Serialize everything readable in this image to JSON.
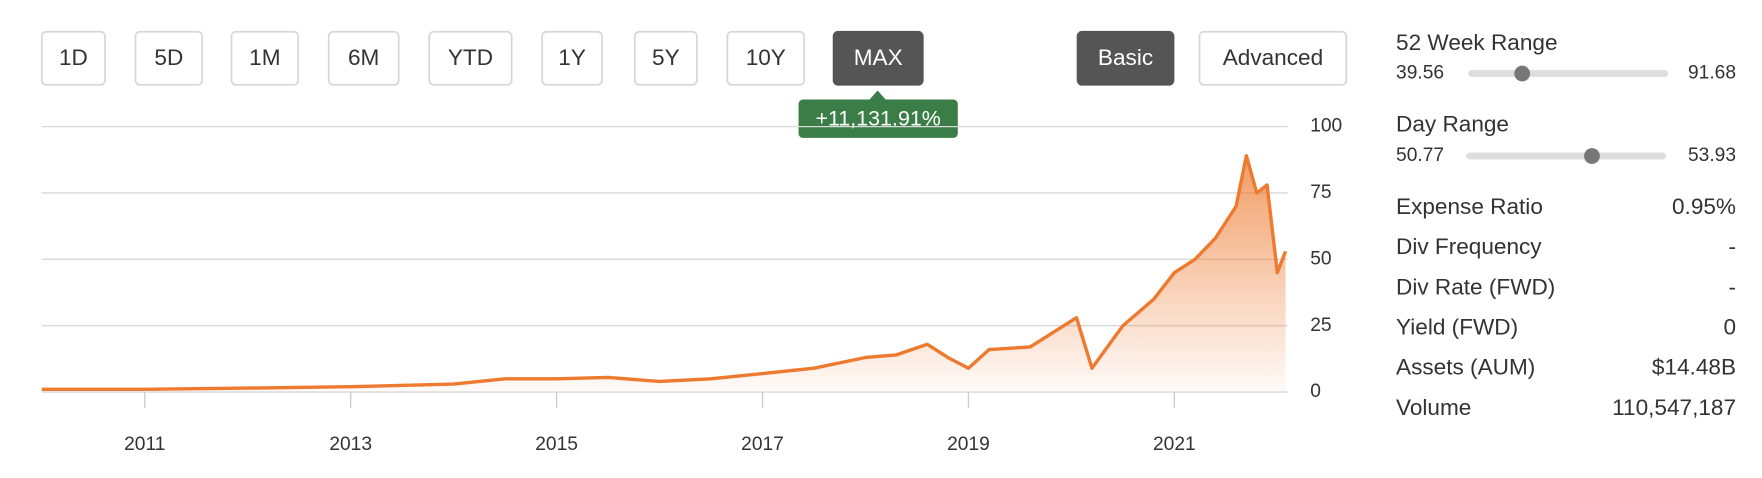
{
  "buttons": {
    "range": [
      "1D",
      "5D",
      "1M",
      "6M",
      "YTD",
      "1Y",
      "5Y",
      "10Y",
      "MAX"
    ],
    "active_range": 8,
    "view": [
      "Basic",
      "Advanced"
    ],
    "active_view": 0
  },
  "badge": "+11,131.91%",
  "chart_data": {
    "type": "line",
    "color": "#ee7a30",
    "x": [
      2010,
      2011,
      2012,
      2013,
      2014,
      2014.5,
      2015,
      2015.5,
      2016,
      2016.5,
      2017,
      2017.5,
      2018,
      2018.3,
      2018.6,
      2018.8,
      2019,
      2019.2,
      2019.6,
      2020.05,
      2020.2,
      2020.5,
      2020.8,
      2021,
      2021.2,
      2021.4,
      2021.6,
      2021.7,
      2021.8,
      2021.9,
      2022,
      2022.08
    ],
    "values": [
      1,
      1,
      1.5,
      2,
      3,
      5,
      5,
      5.5,
      4,
      5,
      7,
      9,
      13,
      14,
      18,
      13,
      9,
      16,
      17,
      28,
      9,
      25,
      35,
      45,
      50,
      58,
      70,
      89,
      75,
      78,
      45,
      53
    ],
    "xlim": [
      2010,
      2022.1
    ],
    "xticks": [
      2011,
      2013,
      2015,
      2017,
      2019,
      2021
    ],
    "ylim": [
      0,
      100
    ],
    "yticks": [
      0,
      25,
      50,
      75,
      100
    ],
    "grid": true
  },
  "ranges": [
    {
      "label": "52 Week Range",
      "low": 39.56,
      "high": 91.68,
      "marker": 53.6
    },
    {
      "label": "Day Range",
      "low": 50.77,
      "high": 53.93,
      "marker": 52.76
    }
  ],
  "stats": [
    {
      "label": "Expense Ratio",
      "value": "0.95%"
    },
    {
      "label": "Div Frequency",
      "value": "-"
    },
    {
      "label": "Div Rate (FWD)",
      "value": "-"
    },
    {
      "label": "Yield (FWD)",
      "value": "0"
    },
    {
      "label": "Assets (AUM)",
      "value": "$14.48B"
    },
    {
      "label": "Volume",
      "value": "110,547,187"
    }
  ]
}
